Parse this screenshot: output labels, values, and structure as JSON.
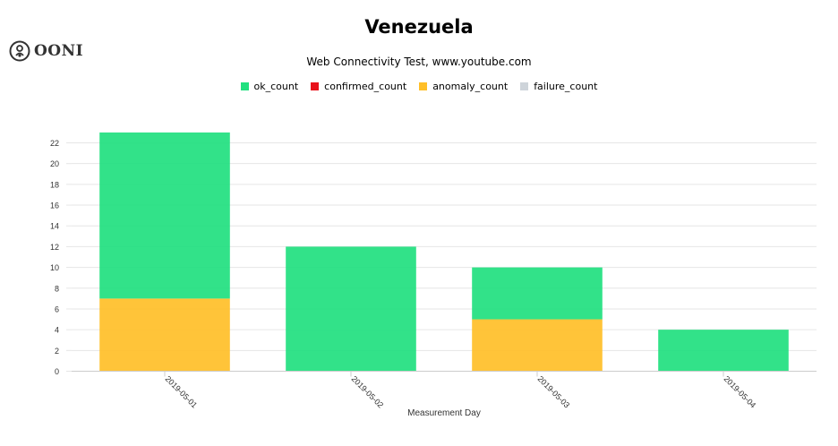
{
  "brand": {
    "logo_text": "OONI",
    "logo_icon": "ooni-logo-icon"
  },
  "chart_data": {
    "type": "bar",
    "stacked": true,
    "title": "Venezuela",
    "subtitle": "Web Connectivity Test, www.youtube.com",
    "xlabel": "Measurement Day",
    "ylabel": "",
    "categories": [
      "2019-05-01",
      "2019-05-02",
      "2019-05-03",
      "2019-05-04"
    ],
    "ylim": [
      0,
      22
    ],
    "yticks": [
      0,
      2,
      4,
      6,
      8,
      10,
      12,
      14,
      16,
      18,
      20,
      22
    ],
    "grid": true,
    "legend_position": "top-center",
    "series": [
      {
        "name": "ok_count",
        "color": "#21e07f",
        "values": [
          16,
          12,
          5,
          4
        ]
      },
      {
        "name": "confirmed_count",
        "color": "#e8121b",
        "values": [
          0,
          0,
          0,
          0
        ]
      },
      {
        "name": "anomaly_count",
        "color": "#ffbf28",
        "values": [
          7,
          0,
          5,
          0
        ]
      },
      {
        "name": "failure_count",
        "color": "#ced4da",
        "values": [
          0,
          0,
          0,
          0
        ]
      }
    ],
    "stack_order": [
      "anomaly_count",
      "ok_count"
    ]
  }
}
